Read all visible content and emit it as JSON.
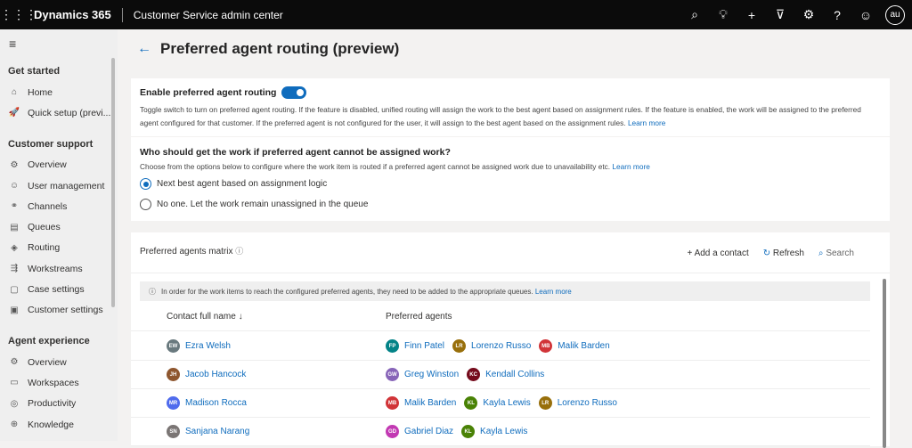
{
  "header": {
    "brand": "Dynamics 365",
    "app": "Customer Service admin center",
    "user_initials": "au",
    "icons": [
      "search-icon",
      "lightbulb-icon",
      "plus-icon",
      "filter-icon",
      "gear-icon",
      "help-icon",
      "smiley-icon"
    ]
  },
  "sidebar": {
    "sections": [
      {
        "title": "Get started",
        "items": [
          {
            "label": "Home",
            "icon": "⌂"
          },
          {
            "label": "Quick setup (previ...",
            "icon": "🚀"
          }
        ]
      },
      {
        "title": "Customer support",
        "items": [
          {
            "label": "Overview",
            "icon": "⚙"
          },
          {
            "label": "User management",
            "icon": "☺"
          },
          {
            "label": "Channels",
            "icon": "⚭"
          },
          {
            "label": "Queues",
            "icon": "▤"
          },
          {
            "label": "Routing",
            "icon": "◈"
          },
          {
            "label": "Workstreams",
            "icon": "⇶"
          },
          {
            "label": "Case settings",
            "icon": "▢"
          },
          {
            "label": "Customer settings",
            "icon": "▣"
          }
        ]
      },
      {
        "title": "Agent experience",
        "items": [
          {
            "label": "Overview",
            "icon": "⚙"
          },
          {
            "label": "Workspaces",
            "icon": "▭"
          },
          {
            "label": "Productivity",
            "icon": "◎"
          },
          {
            "label": "Knowledge",
            "icon": "⊕"
          }
        ]
      }
    ]
  },
  "page": {
    "title": "Preferred agent routing (preview)"
  },
  "enable": {
    "label": "Enable preferred agent routing",
    "toggle_on": true,
    "description": "Toggle switch to turn on preferred agent routing. If the feature is disabled, unified routing will assign the work to the best agent based on assignment rules. If the feature is enabled, the work will be assigned to the preferred agent configured for that customer. If the preferred agent is not configured for the user, it will assign to the best agent based on the assignment rules.",
    "learn_more": "Learn more"
  },
  "fallback": {
    "question": "Who should get the work if preferred agent cannot be assigned work?",
    "description": "Choose from the options below to configure where the work item is routed if a preferred agent cannot be assigned work due to unavailability etc.",
    "learn_more": "Learn more",
    "options": [
      "Next best agent based on assignment logic",
      "No one. Let the work remain unassigned in the queue"
    ],
    "selected": 0
  },
  "matrix": {
    "title": "Preferred agents matrix",
    "add_label": "Add a contact",
    "refresh_label": "Refresh",
    "search_placeholder": "Search",
    "banner": "In order for the work items to reach the configured preferred agents, they need to be added to the appropriate queues.",
    "banner_link": "Learn more",
    "col_contact": "Contact full name",
    "col_agents": "Preferred agents",
    "rows": [
      {
        "contact": {
          "name": "Ezra Welsh",
          "initials": "EW",
          "color": "#69797e"
        },
        "agents": [
          {
            "name": "Finn Patel",
            "initials": "FP",
            "color": "#038387"
          },
          {
            "name": "Lorenzo Russo",
            "initials": "LR",
            "color": "#986f0b"
          },
          {
            "name": "Malik Barden",
            "initials": "MB",
            "color": "#d13438"
          }
        ]
      },
      {
        "contact": {
          "name": "Jacob Hancock",
          "initials": "JH",
          "color": "#8e562e"
        },
        "agents": [
          {
            "name": "Greg Winston",
            "initials": "GW",
            "color": "#8764b8"
          },
          {
            "name": "Kendall Collins",
            "initials": "KC",
            "color": "#750b1c"
          }
        ]
      },
      {
        "contact": {
          "name": "Madison Rocca",
          "initials": "MR",
          "color": "#4f6bed"
        },
        "agents": [
          {
            "name": "Malik Barden",
            "initials": "MB",
            "color": "#d13438"
          },
          {
            "name": "Kayla Lewis",
            "initials": "KL",
            "color": "#498205"
          },
          {
            "name": "Lorenzo Russo",
            "initials": "LR",
            "color": "#986f0b"
          }
        ]
      },
      {
        "contact": {
          "name": "Sanjana Narang",
          "initials": "SN",
          "color": "#7a7574"
        },
        "agents": [
          {
            "name": "Gabriel Diaz",
            "initials": "GD",
            "color": "#c239b3"
          },
          {
            "name": "Kayla Lewis",
            "initials": "KL",
            "color": "#498205"
          }
        ]
      }
    ]
  }
}
